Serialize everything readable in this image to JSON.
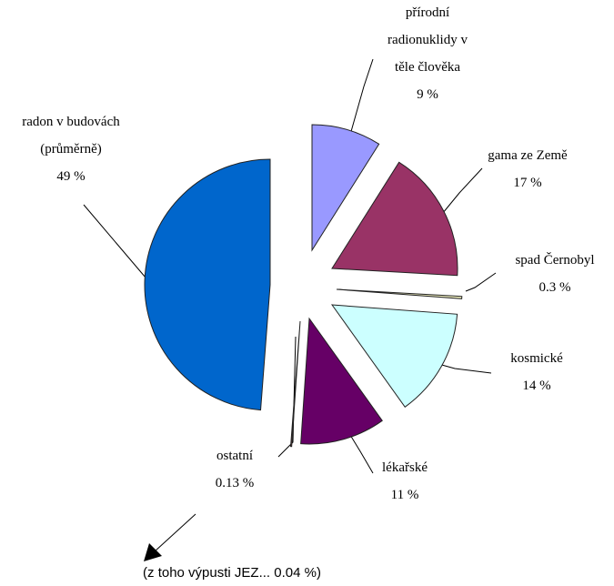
{
  "chart_data": {
    "type": "pie",
    "categories": [
      "přírodní radionuklidy v těle člověka",
      "gama ze Země",
      "spad Černobyl",
      "kosmické",
      "lékařské",
      "ostatní",
      "radon v budovách (průměrně)"
    ],
    "values": [
      9,
      17,
      0.3,
      14,
      11,
      0.13,
      49
    ],
    "value_labels": [
      "9 %",
      "17 %",
      "0.3 %",
      "14 %",
      "11 %",
      "0.13 %",
      "49 %"
    ],
    "colors": [
      "#9999ff",
      "#993366",
      "#ffffcc",
      "#ccffff",
      "#660066",
      "#ff8080",
      "#0066cc"
    ],
    "annotation": "(z toho výpusti JEZ... 0.04 %)"
  }
}
